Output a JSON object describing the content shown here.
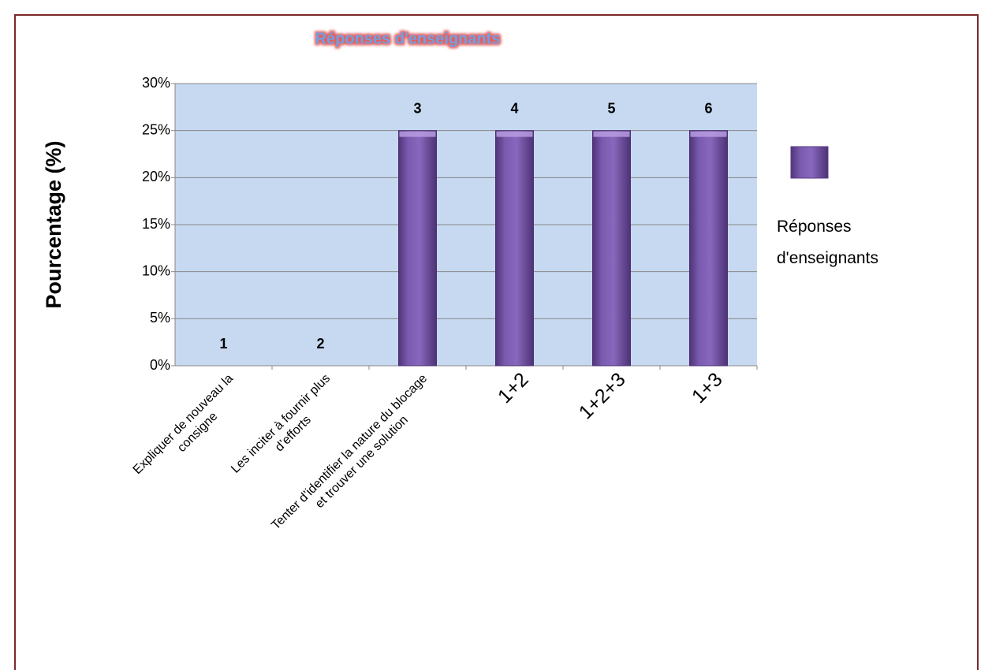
{
  "chart_data": {
    "type": "bar",
    "title": "Réponses d'enseignants",
    "y_axis_label": "Pourcentage (%)",
    "categories": [
      [
        "Expliquer de nouveau la",
        "consigne"
      ],
      [
        "Les inciter à fournir plus",
        "d’efforts"
      ],
      [
        "Tenter d’identifier la nature du blocage",
        "et trouver une solution"
      ],
      [
        "1+2"
      ],
      [
        "1+2+3"
      ],
      [
        "1+3"
      ]
    ],
    "series": [
      {
        "name": "Réponses d'enseignants",
        "color": "#7a5aae",
        "values": [
          0,
          0,
          25,
          25,
          25,
          25
        ]
      }
    ],
    "bar_labels": [
      "1",
      "2",
      "3",
      "4",
      "5",
      "6"
    ],
    "ylim": [
      0,
      30
    ],
    "yticks": [
      {
        "value": 0,
        "label": "0%"
      },
      {
        "value": 5,
        "label": "5%"
      },
      {
        "value": 10,
        "label": "10%"
      },
      {
        "value": 15,
        "label": "15%"
      },
      {
        "value": 20,
        "label": "20%"
      },
      {
        "value": 25,
        "label": "25%"
      },
      {
        "value": 30,
        "label": "30%"
      }
    ],
    "grid": true,
    "legend": "right"
  }
}
